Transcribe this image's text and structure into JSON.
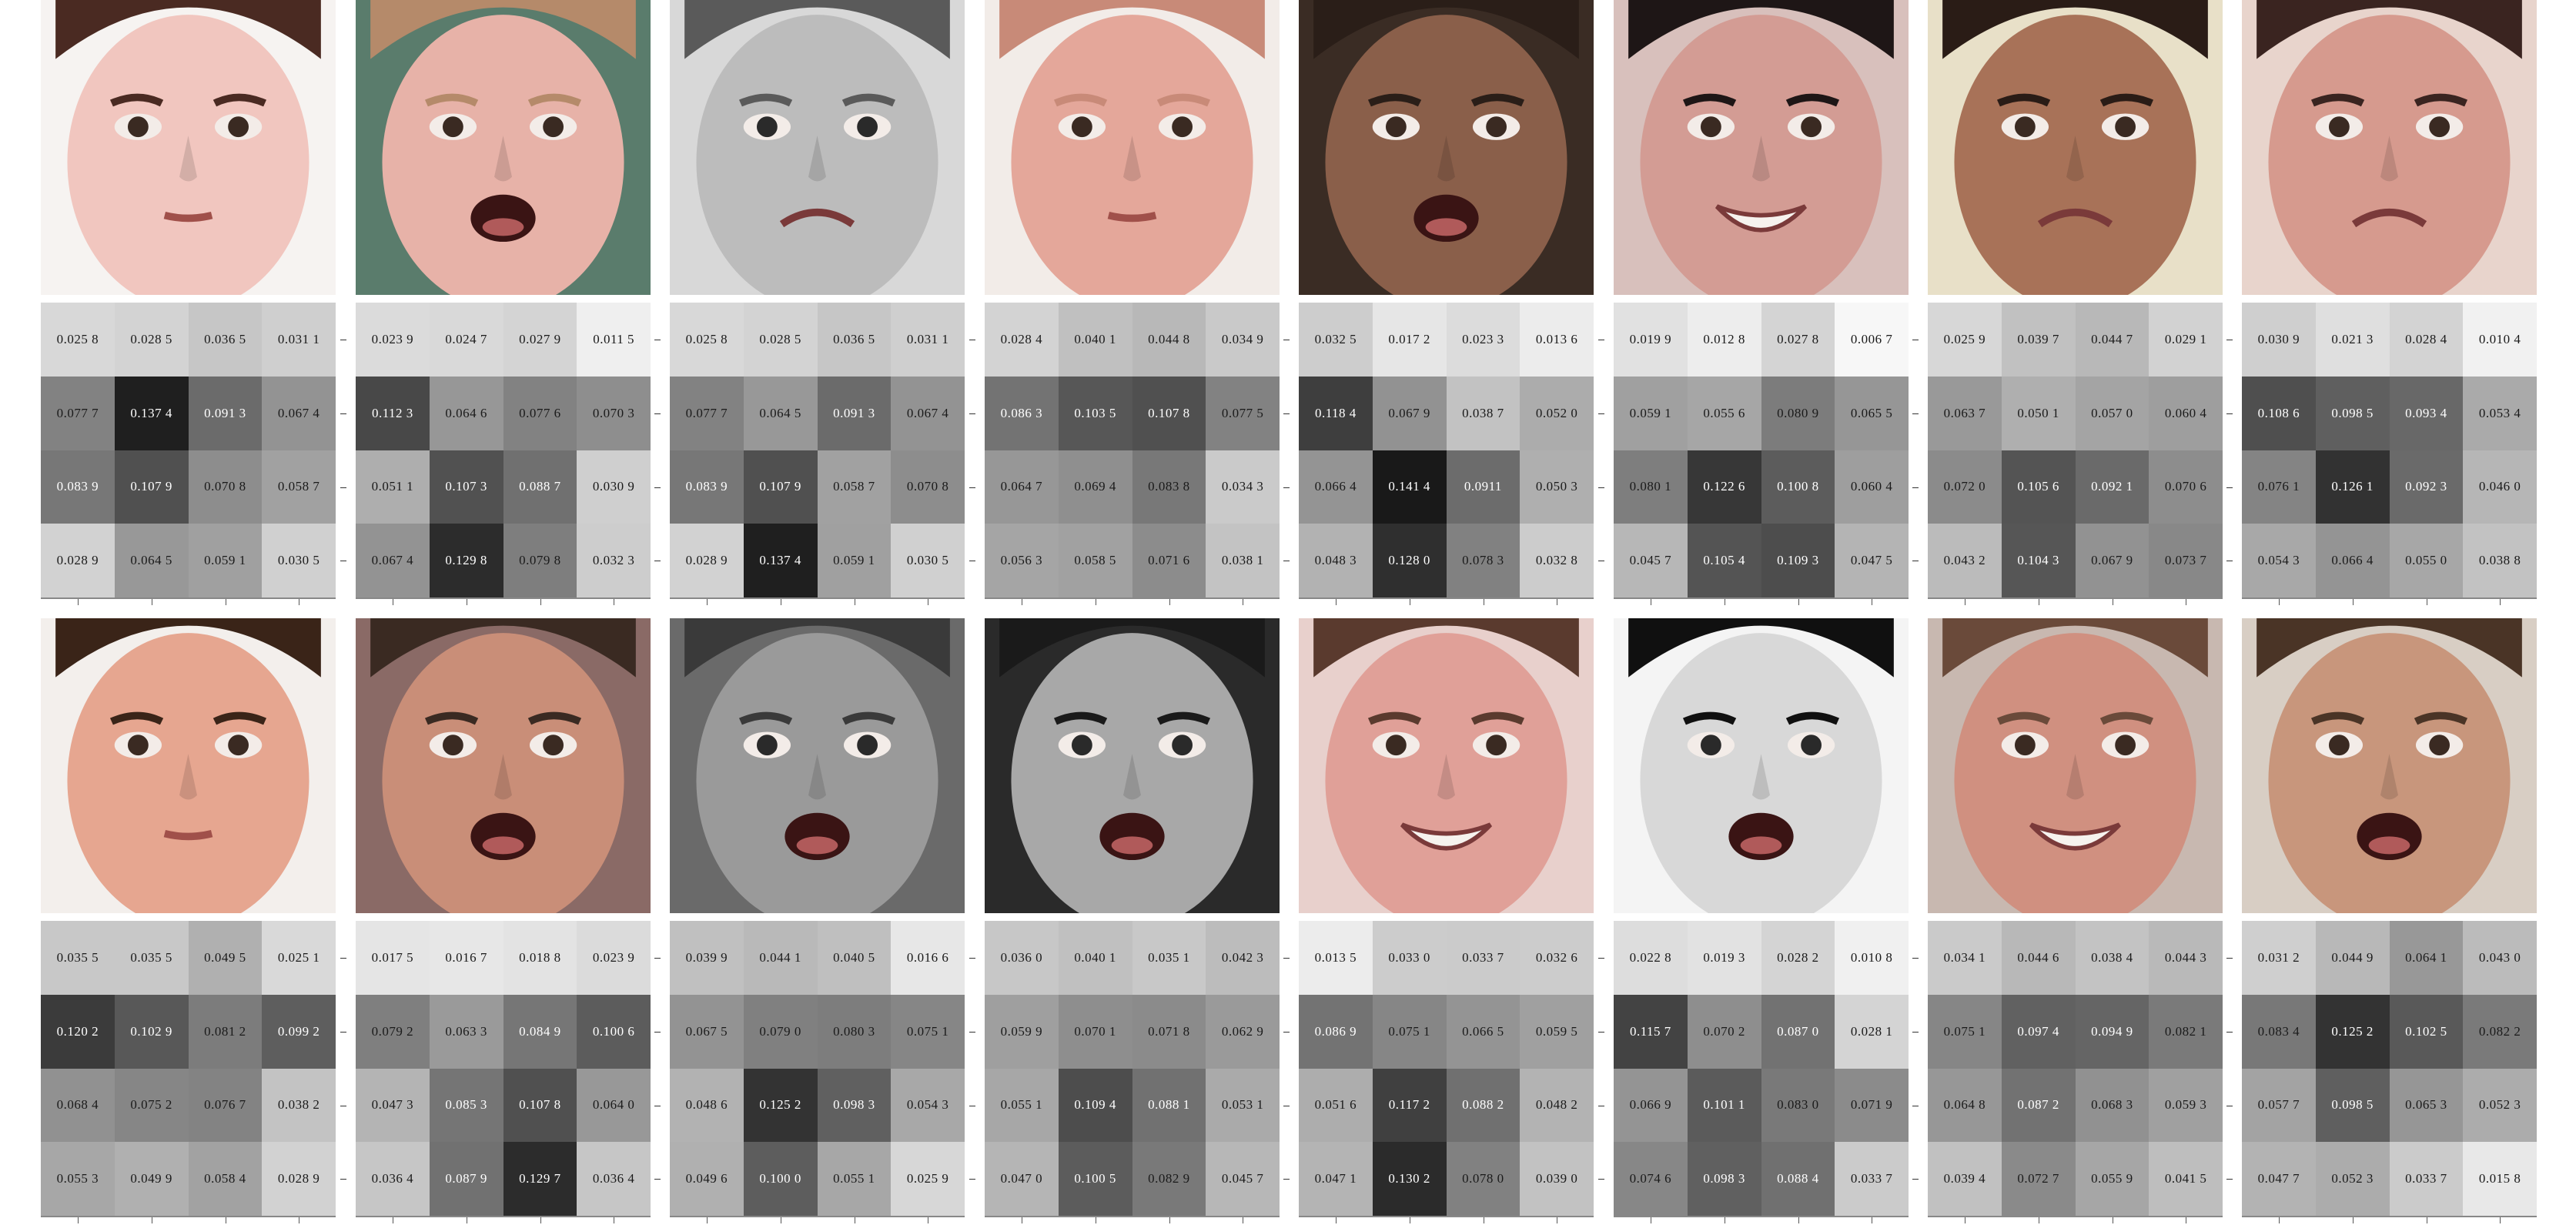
{
  "panels": [
    {
      "skin": "#f1c6bf",
      "hair": "#4a2a22",
      "bg": "#f6f3f1",
      "mouth": "closed",
      "gray": false,
      "values": [
        [
          "0.025 8",
          "0.028 5",
          "0.036 5",
          "0.031 1"
        ],
        [
          "0.077 7",
          "0.137 4",
          "0.091 3",
          "0.067 4"
        ],
        [
          "0.083 9",
          "0.107 9",
          "0.070 8",
          "0.058 7"
        ],
        [
          "0.028 9",
          "0.064 5",
          "0.059 1",
          "0.030 5"
        ]
      ]
    },
    {
      "skin": "#e7b2a8",
      "hair": "#b58a6a",
      "bg": "#5a7c6c",
      "mouth": "open",
      "gray": false,
      "values": [
        [
          "0.023 9",
          "0.024 7",
          "0.027 9",
          "0.011 5"
        ],
        [
          "0.112 3",
          "0.064 6",
          "0.077 6",
          "0.070 3"
        ],
        [
          "0.051 1",
          "0.107 3",
          "0.088 7",
          "0.030 9"
        ],
        [
          "0.067 4",
          "0.129 8",
          "0.079 8",
          "0.032 3"
        ]
      ]
    },
    {
      "skin": "#bcbcbc",
      "hair": "#5a5a5a",
      "bg": "#d8d8d8",
      "mouth": "sad",
      "gray": true,
      "values": [
        [
          "0.025 8",
          "0.028 5",
          "0.036 5",
          "0.031 1"
        ],
        [
          "0.077 7",
          "0.064 5",
          "0.091 3",
          "0.067 4"
        ],
        [
          "0.083 9",
          "0.107 9",
          "0.058 7",
          "0.070 8"
        ],
        [
          "0.028 9",
          "0.137 4",
          "0.059 1",
          "0.030 5"
        ]
      ]
    },
    {
      "skin": "#e4a79a",
      "hair": "#c88a78",
      "bg": "#f2ece8",
      "mouth": "closed",
      "gray": false,
      "values": [
        [
          "0.028 4",
          "0.040 1",
          "0.044 8",
          "0.034 9"
        ],
        [
          "0.086 3",
          "0.103 5",
          "0.107 8",
          "0.077 5"
        ],
        [
          "0.064 7",
          "0.069 4",
          "0.083 8",
          "0.034 3"
        ],
        [
          "0.056 3",
          "0.058 5",
          "0.071 6",
          "0.038 1"
        ]
      ]
    },
    {
      "skin": "#8a5f4a",
      "hair": "#2a1e18",
      "bg": "#3a2c24",
      "mouth": "open",
      "gray": false,
      "values": [
        [
          "0.032 5",
          "0.017 2",
          "0.023 3",
          "0.013 6"
        ],
        [
          "0.118 4",
          "0.067 9",
          "0.038 7",
          "0.052 0"
        ],
        [
          "0.066 4",
          "0.141 4",
          "0.0911",
          "0.050 3"
        ],
        [
          "0.048 3",
          "0.128 0",
          "0.078 3",
          "0.032 8"
        ]
      ]
    },
    {
      "skin": "#d39c94",
      "hair": "#1e1616",
      "bg": "#d8c0bc",
      "mouth": "smile",
      "gray": false,
      "values": [
        [
          "0.019 9",
          "0.012 8",
          "0.027 8",
          "0.006 7"
        ],
        [
          "0.059 1",
          "0.055 6",
          "0.080 9",
          "0.065 5"
        ],
        [
          "0.080 1",
          "0.122 6",
          "0.100 8",
          "0.060 4"
        ],
        [
          "0.045 7",
          "0.105 4",
          "0.109 3",
          "0.047 5"
        ]
      ]
    },
    {
      "skin": "#a87258",
      "hair": "#2a1c16",
      "bg": "#e8e0c8",
      "mouth": "sad",
      "gray": false,
      "values": [
        [
          "0.025 9",
          "0.039 7",
          "0.044 7",
          "0.029 1"
        ],
        [
          "0.063 7",
          "0.050 1",
          "0.057 0",
          "0.060 4"
        ],
        [
          "0.072 0",
          "0.105 6",
          "0.092 1",
          "0.070 6"
        ],
        [
          "0.043 2",
          "0.104 3",
          "0.067 9",
          "0.073 7"
        ]
      ]
    },
    {
      "skin": "#d69a8e",
      "hair": "#3a2420",
      "bg": "#e8d4cc",
      "mouth": "sad",
      "gray": false,
      "values": [
        [
          "0.030 9",
          "0.021 3",
          "0.028 4",
          "0.010 4"
        ],
        [
          "0.108 6",
          "0.098 5",
          "0.093 4",
          "0.053 4"
        ],
        [
          "0.076 1",
          "0.126 1",
          "0.092 3",
          "0.046 0"
        ],
        [
          "0.054 3",
          "0.066 4",
          "0.055 0",
          "0.038 8"
        ]
      ]
    },
    {
      "skin": "#e6a690",
      "hair": "#3a2418",
      "bg": "#f3efec",
      "mouth": "closed",
      "gray": false,
      "values": [
        [
          "0.035 5",
          "0.035 5",
          "0.049 5",
          "0.025 1"
        ],
        [
          "0.120 2",
          "0.102 9",
          "0.081 2",
          "0.099 2"
        ],
        [
          "0.068 4",
          "0.075 2",
          "0.076 7",
          "0.038 2"
        ],
        [
          "0.055 3",
          "0.049 9",
          "0.058 4",
          "0.028 9"
        ]
      ]
    },
    {
      "skin": "#c98e78",
      "hair": "#3a2a22",
      "bg": "#8a6a66",
      "mouth": "open",
      "gray": false,
      "values": [
        [
          "0.017 5",
          "0.016 7",
          "0.018 8",
          "0.023 9"
        ],
        [
          "0.079 2",
          "0.063 3",
          "0.084 9",
          "0.100 6"
        ],
        [
          "0.047 3",
          "0.085 3",
          "0.107 8",
          "0.064 0"
        ],
        [
          "0.036 4",
          "0.087 9",
          "0.129 7",
          "0.036 4"
        ]
      ]
    },
    {
      "skin": "#9a9a9a",
      "hair": "#3a3a3a",
      "bg": "#6a6a6a",
      "mouth": "open",
      "gray": true,
      "values": [
        [
          "0.039 9",
          "0.044 1",
          "0.040 5",
          "0.016 6"
        ],
        [
          "0.067 5",
          "0.079 0",
          "0.080 3",
          "0.075 1"
        ],
        [
          "0.048 6",
          "0.125 2",
          "0.098 3",
          "0.054 3"
        ],
        [
          "0.049 6",
          "0.100 0",
          "0.055 1",
          "0.025 9"
        ]
      ]
    },
    {
      "skin": "#a8a8a8",
      "hair": "#1a1a1a",
      "bg": "#2a2a2a",
      "mouth": "open",
      "gray": true,
      "values": [
        [
          "0.036 0",
          "0.040 1",
          "0.035 1",
          "0.042 3"
        ],
        [
          "0.059 9",
          "0.070 1",
          "0.071 8",
          "0.062 9"
        ],
        [
          "0.055 1",
          "0.109 4",
          "0.088 1",
          "0.053 1"
        ],
        [
          "0.047 0",
          "0.100 5",
          "0.082 9",
          "0.045 7"
        ]
      ]
    },
    {
      "skin": "#e0a098",
      "hair": "#5a3a2e",
      "bg": "#e8d0cc",
      "mouth": "smile",
      "gray": false,
      "values": [
        [
          "0.013 5",
          "0.033 0",
          "0.033 7",
          "0.032 6"
        ],
        [
          "0.086 9",
          "0.075 1",
          "0.066 5",
          "0.059 5"
        ],
        [
          "0.051 6",
          "0.117 2",
          "0.088 2",
          "0.048 2"
        ],
        [
          "0.047 1",
          "0.130 2",
          "0.078 0",
          "0.039 0"
        ]
      ]
    },
    {
      "skin": "#d8d8d8",
      "hair": "#101010",
      "bg": "#f4f4f4",
      "mouth": "open",
      "gray": true,
      "values": [
        [
          "0.022 8",
          "0.019 3",
          "0.028 2",
          "0.010 8"
        ],
        [
          "0.115 7",
          "0.070 2",
          "0.087 0",
          "0.028 1"
        ],
        [
          "0.066 9",
          "0.101 1",
          "0.083 0",
          "0.071 9"
        ],
        [
          "0.074 6",
          "0.098 3",
          "0.088 4",
          "0.033 7"
        ]
      ]
    },
    {
      "skin": "#d09080",
      "hair": "#6a4a3a",
      "bg": "#c8b8b0",
      "mouth": "smile",
      "gray": false,
      "values": [
        [
          "0.034 1",
          "0.044 6",
          "0.038 4",
          "0.044 3"
        ],
        [
          "0.075 1",
          "0.097 4",
          "0.094 9",
          "0.082 1"
        ],
        [
          "0.064 8",
          "0.087 2",
          "0.068 3",
          "0.059 3"
        ],
        [
          "0.039 4",
          "0.072 7",
          "0.055 9",
          "0.041 5"
        ]
      ]
    },
    {
      "skin": "#c8967c",
      "hair": "#4a3426",
      "bg": "#d8cec4",
      "mouth": "open",
      "gray": false,
      "values": [
        [
          "0.031 2",
          "0.044 9",
          "0.064 1",
          "0.043 0"
        ],
        [
          "0.083 4",
          "0.125 2",
          "0.102 5",
          "0.082 2"
        ],
        [
          "0.057 7",
          "0.098 5",
          "0.065 3",
          "0.052 3"
        ],
        [
          "0.047 7",
          "0.052 3",
          "0.033 7",
          "0.015 8"
        ]
      ]
    }
  ]
}
